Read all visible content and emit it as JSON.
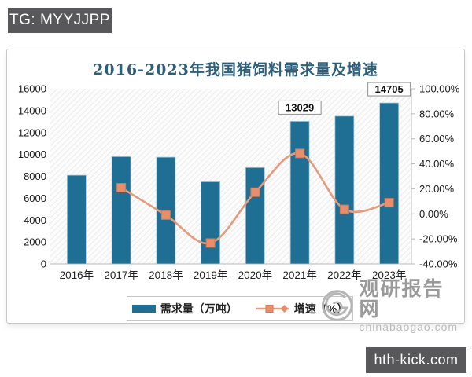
{
  "badges": {
    "top_left": "TG: MYYJJPP",
    "bottom_right": "hth-kick.com"
  },
  "watermark": {
    "site_name": "观研报告网",
    "site_url": "chinabaogao.com"
  },
  "chart_data": {
    "type": "bar",
    "combo": "bar+line",
    "title": "2016-2023年我国猪饲料需求量及增速",
    "categories": [
      "2016年",
      "2017年",
      "2018年",
      "2019年",
      "2020年",
      "2021年",
      "2022年",
      "2023年"
    ],
    "series": [
      {
        "name": "需求量（万吨）",
        "chart_type": "bar",
        "axis": "left",
        "color": "#1f6e93",
        "values": [
          8100,
          9800,
          9750,
          7500,
          8800,
          13029,
          13500,
          14705
        ],
        "data_labels": [
          null,
          null,
          null,
          null,
          null,
          "13029",
          null,
          "14705"
        ]
      },
      {
        "name": "增速（%）",
        "chart_type": "line",
        "axis": "right",
        "color": "#e59b7c",
        "marker_color": "#e68e6d",
        "values": [
          null,
          20.9,
          -1.0,
          -23.3,
          17.3,
          48.3,
          3.6,
          8.9
        ]
      }
    ],
    "left_axis": {
      "min": 0,
      "max": 16000,
      "tick_labels": [
        "0",
        "2000",
        "4000",
        "6000",
        "8000",
        "10000",
        "12000",
        "14000",
        "16000"
      ]
    },
    "right_axis": {
      "min": -40,
      "max": 100,
      "tick_labels": [
        "-40.00%",
        "-20.00%",
        "0.00%",
        "20.00%",
        "40.00%",
        "60.00%",
        "80.00%",
        "100.00%"
      ]
    },
    "legend_position": "bottom",
    "grid": "off",
    "plot_background": "diagonal-hatch"
  }
}
